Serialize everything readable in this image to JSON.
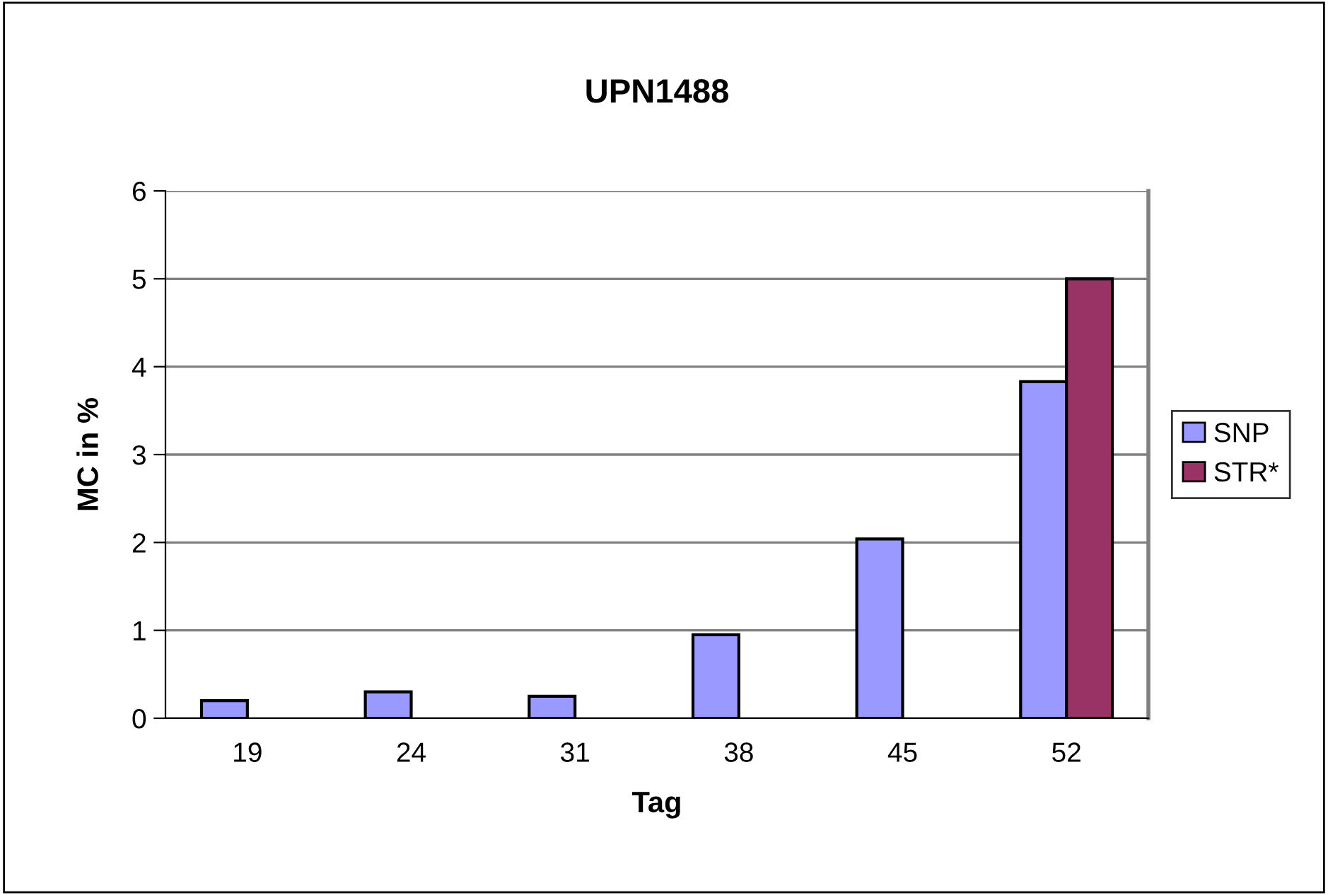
{
  "chart_data": {
    "type": "bar",
    "title": "UPN1488",
    "xlabel": "Tag",
    "ylabel": "MC in %",
    "categories": [
      "19",
      "24",
      "31",
      "38",
      "45",
      "52"
    ],
    "series": [
      {
        "name": "SNP",
        "color": "#9999ff",
        "values": [
          0.2,
          0.3,
          0.25,
          0.95,
          2.04,
          3.83
        ]
      },
      {
        "name": "STR*",
        "color": "#993366",
        "values": [
          null,
          null,
          null,
          null,
          null,
          5.0
        ]
      }
    ],
    "ylim": [
      0,
      6
    ],
    "yticks": [
      0,
      1,
      2,
      3,
      4,
      5,
      6
    ],
    "grid": "y",
    "legend": "right"
  }
}
